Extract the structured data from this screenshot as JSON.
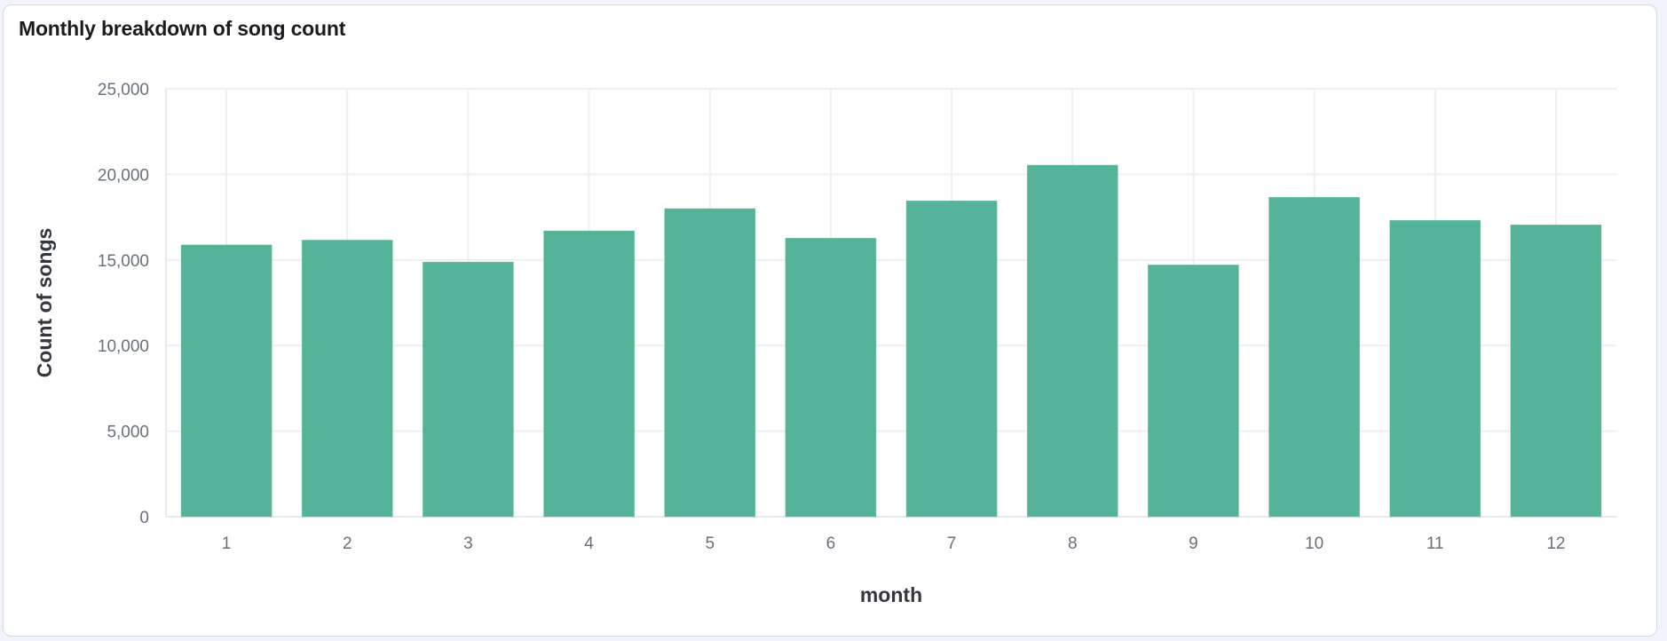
{
  "panel": {
    "title": "Monthly breakdown of song count"
  },
  "colors": {
    "bar": "#54b399",
    "bar_stroke": "#7cc5b0",
    "grid": "#eceff3",
    "tick_text": "#69707d",
    "axis_title": "#343741",
    "title_text": "#1a1c21",
    "card_border": "#d3dae6",
    "page_background": "#f1f4fa"
  },
  "chart_data": {
    "type": "bar",
    "title": "Monthly breakdown of song count",
    "xlabel": "month",
    "ylabel": "Count of songs",
    "categories": [
      "1",
      "2",
      "3",
      "4",
      "5",
      "6",
      "7",
      "8",
      "9",
      "10",
      "11",
      "12"
    ],
    "values": [
      15880,
      16160,
      14880,
      16700,
      18000,
      16270,
      18450,
      20540,
      14710,
      18660,
      17310,
      17050
    ],
    "ylim": [
      0,
      25000
    ],
    "yticks": [
      0,
      5000,
      10000,
      15000,
      20000,
      25000
    ],
    "ytick_labels": [
      "0",
      "5,000",
      "10,000",
      "15,000",
      "20,000",
      "25,000"
    ],
    "grid": true,
    "legend": null
  }
}
